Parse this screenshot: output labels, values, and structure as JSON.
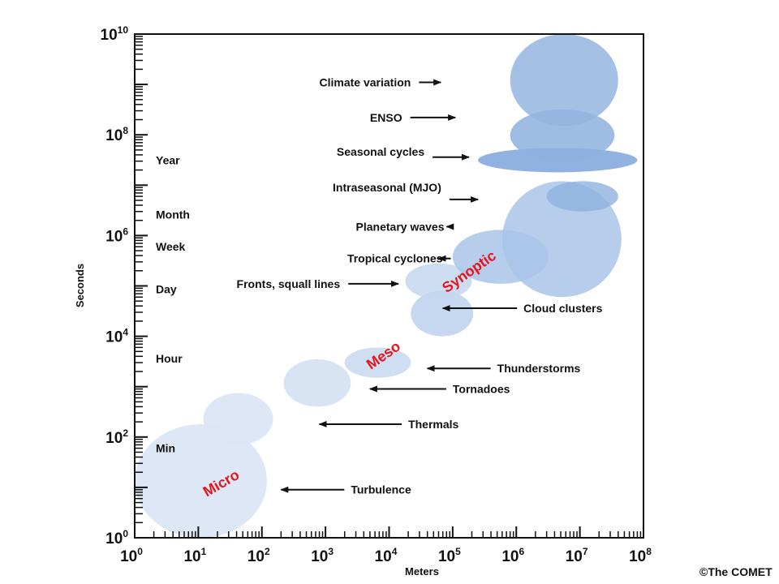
{
  "chart_data": {
    "type": "scatter",
    "xlabel": "Meters",
    "ylabel": "Seconds",
    "x_scale": "log",
    "y_scale": "log",
    "xlim": [
      1,
      100000000
    ],
    "ylim": [
      1,
      10000000000
    ],
    "grid": false,
    "x_ticks": [
      {
        "value": 1,
        "base": "10",
        "exp": "0"
      },
      {
        "value": 10,
        "base": "10",
        "exp": "1"
      },
      {
        "value": 100,
        "base": "10",
        "exp": "2"
      },
      {
        "value": 1000,
        "base": "10",
        "exp": "3"
      },
      {
        "value": 10000,
        "base": "10",
        "exp": "4"
      },
      {
        "value": 100000,
        "base": "10",
        "exp": "5"
      },
      {
        "value": 1000000,
        "base": "10",
        "exp": "6"
      },
      {
        "value": 10000000,
        "base": "10",
        "exp": "7"
      },
      {
        "value": 100000000,
        "base": "10",
        "exp": "8"
      }
    ],
    "y_ticks": [
      {
        "value": 1,
        "base": "10",
        "exp": "0"
      },
      {
        "value": 100,
        "base": "10",
        "exp": "2"
      },
      {
        "value": 10000,
        "base": "10",
        "exp": "4"
      },
      {
        "value": 1000000,
        "base": "10",
        "exp": "6"
      },
      {
        "value": 100000000,
        "base": "10",
        "exp": "8"
      },
      {
        "value": 10000000000,
        "base": "10",
        "exp": "10"
      }
    ],
    "time_labels": [
      {
        "text": "Year",
        "seconds": 31536000
      },
      {
        "text": "Month",
        "seconds": 2592000
      },
      {
        "text": "Week",
        "seconds": 604800
      },
      {
        "text": "Day",
        "seconds": 86400
      },
      {
        "text": "Hour",
        "seconds": 3600
      },
      {
        "text": "Min",
        "seconds": 60
      }
    ],
    "scale_labels": [
      {
        "text": "Micro",
        "x": 25,
        "y": 10,
        "angle": -30
      },
      {
        "text": "Meso",
        "x": 9000,
        "y": 3500,
        "angle": -35
      },
      {
        "text": "Synoptic",
        "x": 200000,
        "y": 160000,
        "angle": -35
      }
    ],
    "phenomena": [
      {
        "label": "Turbulence",
        "x_range": [
          1,
          120
        ],
        "y_range": [
          1,
          180
        ],
        "color": "#dce6f4",
        "opacity": 0.95,
        "label_at": [
          2500,
          9
        ],
        "arrow_to": [
          200,
          9
        ]
      },
      {
        "label": "Thermals",
        "x_range": [
          12,
          150
        ],
        "y_range": [
          70,
          750
        ],
        "color": "#dce6f4",
        "opacity": 0.95,
        "label_at": [
          20000,
          180
        ],
        "arrow_to": [
          800,
          180
        ]
      },
      {
        "label": "Tornadoes",
        "x_range": [
          220,
          2500
        ],
        "y_range": [
          400,
          3500
        ],
        "color": "#d6e2f2",
        "opacity": 0.95,
        "label_at": [
          100000,
          900
        ],
        "arrow_to": [
          5000,
          900
        ]
      },
      {
        "label": "Thunderstorms",
        "x_range": [
          2000,
          22000
        ],
        "y_range": [
          1500,
          6000
        ],
        "color": "#ccdcf0",
        "opacity": 0.95,
        "label_at": [
          500000,
          2300
        ],
        "arrow_to": [
          40000,
          2300
        ]
      },
      {
        "label": "Cloud clusters",
        "x_range": [
          22000,
          210000
        ],
        "y_range": [
          10000,
          80000
        ],
        "color": "#bcd1ec",
        "opacity": 0.85,
        "label_at": [
          1300000,
          36000
        ],
        "arrow_to": [
          70000,
          36000
        ]
      },
      {
        "label": "Fronts, squall lines",
        "x_range": [
          18000,
          200000
        ],
        "y_range": [
          55000,
          280000
        ],
        "color": "#c4d7ee",
        "opacity": 0.85,
        "label_at": [
          40,
          110000
        ],
        "arrow_to": [
          14000,
          110000
        ]
      },
      {
        "label": "Tropical cyclones",
        "x_range": [
          100000,
          3200000
        ],
        "y_range": [
          110000,
          1300000
        ],
        "color": "#a9c4e8",
        "opacity": 0.85,
        "label_at": [
          2200,
          350000
        ],
        "arrow_to": [
          60000,
          350000
        ]
      },
      {
        "label": "Planetary waves",
        "x_range": [
          600000,
          45000000
        ],
        "y_range": [
          60000,
          12000000
        ],
        "color": "#a9c4e8",
        "opacity": 0.85,
        "label_at": [
          3000,
          1500000
        ],
        "arrow_to": [
          80000,
          1500000
        ]
      },
      {
        "label": "Intraseasonal (MJO)",
        "x_range": [
          3000000,
          40000000
        ],
        "y_range": [
          3000000,
          12000000
        ],
        "color": "#8eb2e0",
        "opacity": 0.8,
        "label_at": [
          1300,
          9000000
        ],
        "arrow_to": [
          250000,
          5200000
        ]
      },
      {
        "label": "Seasonal cycles",
        "x_range": [
          250000,
          80000000
        ],
        "y_range": [
          18000000,
          55000000
        ],
        "color": "#7ea5da",
        "opacity": 0.85,
        "label_at": [
          1500,
          46000000
        ],
        "arrow_to": [
          180000,
          36000000
        ]
      },
      {
        "label": "ENSO",
        "x_range": [
          800000,
          35000000
        ],
        "y_range": [
          30000000,
          320000000
        ],
        "color": "#8db0df",
        "opacity": 0.85,
        "label_at": [
          5000,
          220000000
        ],
        "arrow_to": [
          110000,
          220000000
        ]
      },
      {
        "label": "Climate variation",
        "x_range": [
          800000,
          40000000
        ],
        "y_range": [
          150000000,
          10000000000
        ],
        "color": "#94b5e1",
        "opacity": 0.85,
        "label_at": [
          800,
          1100000000
        ],
        "arrow_to": [
          65000,
          1100000000
        ]
      }
    ]
  },
  "copyright": "©The COMET"
}
